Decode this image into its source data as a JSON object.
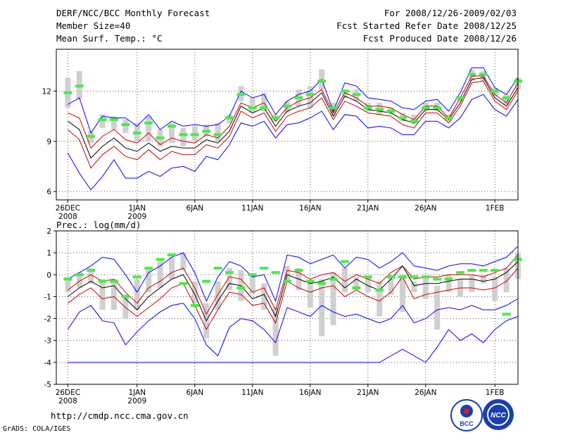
{
  "header": {
    "title": "DERF/NCC/BCC Monthly Forecast",
    "member_size": "Member Size=40",
    "variable": "Mean Surf. Temp.: °C",
    "period": "For 2008/12/26-2009/02/03",
    "fcst_started": "Fcst Started Refer Date 2008/12/25",
    "fcst_produced": "Fcst Produced Date 2008/12/26"
  },
  "precip_label": "Prec.: log(mm/d)",
  "footer": {
    "url": "http://cmdp.ncc.cma.gov.cn",
    "credit": "GrADS: COLA/IGES",
    "logo_bcc": "BCC",
    "logo_ncc": "NCC"
  },
  "colors": {
    "max_line": "#0000ff",
    "min_line": "#0000ff",
    "spread_line": "#cc0000",
    "mean_line": "#000000",
    "box": "#d0d0d0",
    "marker": "#44ee44"
  },
  "chart_data": [
    {
      "type": "line",
      "title": "Mean Surf. Temp.: °C",
      "x_labels": [
        {
          "day": 0,
          "line1": "26DEC",
          "line2": "2008"
        },
        {
          "day": 6,
          "line1": "1JAN",
          "line2": "2009"
        },
        {
          "day": 11,
          "line1": "6JAN",
          "line2": ""
        },
        {
          "day": 16,
          "line1": "11JAN",
          "line2": ""
        },
        {
          "day": 21,
          "line1": "16JAN",
          "line2": ""
        },
        {
          "day": 26,
          "line1": "21JAN",
          "line2": ""
        },
        {
          "day": 31,
          "line1": "26JAN",
          "line2": ""
        },
        {
          "day": 37,
          "line1": "1FEB",
          "line2": ""
        }
      ],
      "xlim": [
        -1,
        39
      ],
      "ylim": [
        5.5,
        14.5
      ],
      "yticks": [
        6,
        9,
        12
      ],
      "grid": true,
      "series": [
        {
          "name": "max",
          "color": "#0000ff",
          "values": [
            11.2,
            11.6,
            9.5,
            10.5,
            10.4,
            10.4,
            9.9,
            10.6,
            9.7,
            10.2,
            9.9,
            10.0,
            9.9,
            10.0,
            10.5,
            12.0,
            11.6,
            11.8,
            10.6,
            11.4,
            11.8,
            12.0,
            12.7,
            10.8,
            12.5,
            12.3,
            11.6,
            11.5,
            11.4,
            11.0,
            10.9,
            11.4,
            11.5,
            10.8,
            11.9,
            13.4,
            13.4,
            12.2,
            11.8,
            12.8
          ]
        },
        {
          "name": "upper",
          "color": "#cc0000",
          "values": [
            10.7,
            10.4,
            8.6,
            9.3,
            9.7,
            9.1,
            8.9,
            9.5,
            8.8,
            9.2,
            9.0,
            8.9,
            9.4,
            9.2,
            9.9,
            11.3,
            11.0,
            11.3,
            10.2,
            11.0,
            11.4,
            11.6,
            12.1,
            10.7,
            11.9,
            11.6,
            11.1,
            11.1,
            11.0,
            10.6,
            10.3,
            11.1,
            11.1,
            10.4,
            11.6,
            12.9,
            12.9,
            11.8,
            11.3,
            12.5
          ]
        },
        {
          "name": "mean",
          "color": "#000000",
          "values": [
            10.2,
            9.7,
            8.0,
            8.7,
            9.2,
            8.6,
            8.4,
            8.9,
            8.4,
            8.7,
            8.6,
            8.6,
            9.1,
            8.9,
            9.6,
            11.1,
            10.7,
            11.0,
            9.9,
            10.8,
            11.1,
            11.3,
            11.9,
            10.5,
            11.7,
            11.4,
            10.9,
            10.8,
            10.7,
            10.3,
            10.1,
            10.9,
            10.9,
            10.3,
            11.3,
            12.7,
            12.8,
            11.6,
            11.1,
            12.2
          ]
        },
        {
          "name": "lower",
          "color": "#cc0000",
          "values": [
            9.7,
            9.1,
            7.4,
            8.2,
            8.7,
            8.1,
            7.9,
            8.5,
            7.9,
            8.4,
            8.2,
            8.2,
            8.8,
            8.6,
            9.3,
            10.8,
            10.4,
            10.7,
            9.6,
            10.5,
            10.8,
            11.0,
            11.6,
            10.3,
            11.4,
            11.1,
            10.7,
            10.6,
            10.5,
            10.0,
            9.8,
            10.7,
            10.7,
            10.1,
            11.1,
            12.5,
            12.6,
            11.4,
            10.9,
            12.0
          ]
        },
        {
          "name": "min",
          "color": "#0000ff",
          "values": [
            8.3,
            7.1,
            6.1,
            6.9,
            7.9,
            6.8,
            6.8,
            7.2,
            6.9,
            7.4,
            7.5,
            7.2,
            8.1,
            7.9,
            8.8,
            10.1,
            9.9,
            10.2,
            9.2,
            10.0,
            10.1,
            10.4,
            10.8,
            9.7,
            10.6,
            10.5,
            9.8,
            9.9,
            9.8,
            9.4,
            9.4,
            10.2,
            10.2,
            9.8,
            10.4,
            11.5,
            11.8,
            10.9,
            10.5,
            11.5
          ]
        }
      ],
      "boxes": [
        [
          11.0,
          12.8
        ],
        [
          11.5,
          13.2
        ],
        [
          8.9,
          9.6
        ],
        [
          9.8,
          10.6
        ],
        [
          9.7,
          10.5
        ],
        [
          9.5,
          10.3
        ],
        [
          9.0,
          10.1
        ],
        [
          9.0,
          10.5
        ],
        [
          8.7,
          9.7
        ],
        [
          8.9,
          10.1
        ],
        [
          8.7,
          9.8
        ],
        [
          9.0,
          9.9
        ],
        [
          9.3,
          10.0
        ],
        [
          9.0,
          10.1
        ],
        [
          10.1,
          10.6
        ],
        [
          11.4,
          12.3
        ],
        [
          10.7,
          11.6
        ],
        [
          10.8,
          11.9
        ],
        [
          10.2,
          10.6
        ],
        [
          10.7,
          11.4
        ],
        [
          11.1,
          12.1
        ],
        [
          11.0,
          12.3
        ],
        [
          12.1,
          13.3
        ],
        [
          10.5,
          11.3
        ],
        [
          11.6,
          12.1
        ],
        [
          11.4,
          12.1
        ],
        [
          10.8,
          11.3
        ],
        [
          10.6,
          11.3
        ],
        [
          10.7,
          11.0
        ],
        [
          10.2,
          10.7
        ],
        [
          10.0,
          10.6
        ],
        [
          10.8,
          11.3
        ],
        [
          10.8,
          11.3
        ],
        [
          10.2,
          10.6
        ],
        [
          11.4,
          11.7
        ],
        [
          12.6,
          13.3
        ],
        [
          12.6,
          13.2
        ],
        [
          11.7,
          12.2
        ],
        [
          11.2,
          11.8
        ],
        [
          12.1,
          12.8
        ]
      ],
      "markers": [
        11.9,
        12.3,
        9.3,
        10.3,
        10.3,
        10.0,
        9.5,
        10.1,
        9.2,
        9.9,
        9.4,
        9.4,
        9.6,
        9.4,
        10.4,
        11.8,
        11.0,
        11.0,
        10.4,
        11.1,
        11.6,
        11.8,
        12.6,
        11.0,
        12.0,
        11.8,
        11.0,
        10.9,
        10.8,
        10.4,
        10.2,
        11.0,
        11.0,
        10.4,
        11.6,
        13.0,
        13.0,
        12.0,
        11.6,
        12.6
      ]
    },
    {
      "type": "line",
      "title": "Prec.: log(mm/d)",
      "x_labels": [
        {
          "day": 0,
          "line1": "26DEC",
          "line2": "2008"
        },
        {
          "day": 6,
          "line1": "1JAN",
          "line2": "2009"
        },
        {
          "day": 11,
          "line1": "6JAN",
          "line2": ""
        },
        {
          "day": 16,
          "line1": "11JAN",
          "line2": ""
        },
        {
          "day": 21,
          "line1": "16JAN",
          "line2": ""
        },
        {
          "day": 26,
          "line1": "21JAN",
          "line2": ""
        },
        {
          "day": 31,
          "line1": "26JAN",
          "line2": ""
        },
        {
          "day": 37,
          "line1": "1FEB",
          "line2": ""
        }
      ],
      "xlim": [
        -1,
        39
      ],
      "ylim": [
        -5,
        2
      ],
      "yticks": [
        -5,
        -4,
        -3,
        -2,
        -1,
        0,
        1,
        2
      ],
      "grid": true,
      "series": [
        {
          "name": "max",
          "color": "#0000ff",
          "values": [
            -0.2,
            0.1,
            0.4,
            0.8,
            0.7,
            0.0,
            -0.8,
            0.1,
            0.4,
            0.8,
            1.0,
            0.1,
            -1.2,
            -0.1,
            0.6,
            0.4,
            -0.1,
            0.0,
            -1.2,
            0.9,
            0.8,
            0.5,
            0.7,
            0.9,
            0.3,
            0.8,
            0.7,
            0.3,
            0.6,
            1.0,
            0.4,
            0.3,
            0.2,
            0.4,
            0.5,
            0.5,
            0.4,
            0.6,
            0.8,
            1.3
          ]
        },
        {
          "name": "upper",
          "color": "#cc0000",
          "values": [
            -0.7,
            -0.3,
            0.0,
            -0.3,
            -0.2,
            -0.8,
            -1.3,
            -0.6,
            -0.3,
            0.1,
            0.3,
            -0.6,
            -1.8,
            -0.9,
            -0.1,
            -0.2,
            -0.8,
            -0.6,
            -1.6,
            0.2,
            0.1,
            -0.2,
            0.0,
            0.1,
            -0.3,
            0.0,
            -0.2,
            -0.4,
            0.1,
            0.4,
            -0.2,
            -0.1,
            -0.1,
            0.0,
            0.0,
            0.0,
            -0.1,
            0.1,
            0.3,
            0.9
          ]
        },
        {
          "name": "mean",
          "color": "#000000",
          "values": [
            -1.0,
            -0.6,
            -0.3,
            -0.6,
            -0.5,
            -1.1,
            -1.6,
            -1.0,
            -0.6,
            -0.2,
            0.0,
            -0.9,
            -2.1,
            -1.2,
            -0.4,
            -0.5,
            -1.1,
            -0.9,
            -1.9,
            0.0,
            -0.2,
            -0.4,
            -0.3,
            -0.1,
            -0.6,
            -0.2,
            -0.5,
            -0.7,
            -0.2,
            0.4,
            -0.5,
            -0.4,
            -0.4,
            -0.3,
            -0.2,
            -0.2,
            -0.3,
            -0.2,
            0.1,
            0.6
          ]
        },
        {
          "name": "lower",
          "color": "#cc0000",
          "values": [
            -1.3,
            -0.9,
            -0.6,
            -1.1,
            -1.0,
            -1.5,
            -1.9,
            -1.5,
            -1.1,
            -0.6,
            -0.4,
            -1.4,
            -2.5,
            -1.6,
            -0.8,
            -0.9,
            -1.4,
            -1.3,
            -2.2,
            -0.3,
            -0.6,
            -0.8,
            -0.6,
            -0.5,
            -1.0,
            -0.7,
            -1.0,
            -1.2,
            -0.8,
            -0.1,
            -1.1,
            -0.9,
            -0.8,
            -0.7,
            -0.6,
            -0.6,
            -0.7,
            -0.6,
            -0.3,
            0.3
          ]
        },
        {
          "name": "min",
          "color": "#0000ff",
          "values": [
            -2.5,
            -1.7,
            -1.4,
            -2.1,
            -2.2,
            -3.2,
            -2.6,
            -2.1,
            -1.7,
            -1.4,
            -1.3,
            -2.0,
            -3.2,
            -3.7,
            -2.4,
            -2.0,
            -2.1,
            -2.5,
            -3.1,
            -1.5,
            -1.7,
            -1.9,
            -1.4,
            -1.7,
            -1.9,
            -1.8,
            -2.0,
            -2.2,
            -2.0,
            -1.4,
            -2.2,
            -2.0,
            -1.6,
            -1.5,
            -1.6,
            -1.4,
            -1.6,
            -1.6,
            -1.4,
            -1.1
          ]
        }
      ],
      "lower_bound": {
        "name": "min_floor",
        "color": "#0000ff",
        "values": [
          -4.0,
          -4.0,
          -4.0,
          -4.0,
          -4.0,
          -4.0,
          -4.0,
          -4.0,
          -4.0,
          -4.0,
          -4.0,
          -4.0,
          -4.0,
          -4.0,
          -4.0,
          -4.0,
          -4.0,
          -4.0,
          -4.0,
          -4.0,
          -4.0,
          -4.0,
          -4.0,
          -4.0,
          -4.0,
          -4.0,
          -4.0,
          -4.0,
          -3.7,
          -3.4,
          -3.7,
          -4.0,
          -3.3,
          -2.5,
          -3.0,
          -2.7,
          -3.1,
          -2.5,
          -2.1,
          -1.9
        ]
      },
      "boxes": [
        [
          -0.8,
          -0.1
        ],
        [
          -0.6,
          0.1
        ],
        [
          -0.4,
          0.3
        ],
        [
          -1.6,
          -0.2
        ],
        [
          -1.6,
          -0.2
        ],
        [
          -2.0,
          -0.9
        ],
        [
          -1.6,
          -0.2
        ],
        [
          -0.8,
          0.3
        ],
        [
          -0.6,
          0.7
        ],
        [
          -0.2,
          0.8
        ],
        [
          0.2,
          1.0
        ],
        [
          -1.3,
          -0.3
        ],
        [
          -2.9,
          -1.3
        ],
        [
          -1.6,
          -0.3
        ],
        [
          -0.7,
          0.3
        ],
        [
          -1.2,
          0.2
        ],
        [
          -0.9,
          0.0
        ],
        [
          -1.6,
          -0.4
        ],
        [
          -3.7,
          -1.5
        ],
        [
          -0.3,
          0.4
        ],
        [
          -0.7,
          0.3
        ],
        [
          -1.5,
          -0.2
        ],
        [
          -2.8,
          -0.2
        ],
        [
          -2.3,
          0.1
        ],
        [
          -0.8,
          0.3
        ],
        [
          -0.7,
          -0.1
        ],
        [
          -0.8,
          -0.1
        ],
        [
          -1.9,
          -0.3
        ],
        [
          -0.9,
          0.0
        ],
        [
          -1.7,
          0.0
        ],
        [
          -0.8,
          -0.3
        ],
        [
          -1.1,
          -0.1
        ],
        [
          -2.5,
          -0.5
        ],
        [
          -0.8,
          0.0
        ],
        [
          -1.0,
          -0.2
        ],
        [
          -0.8,
          0.0
        ],
        [
          -0.4,
          0.0
        ],
        [
          -1.2,
          -0.1
        ],
        [
          -0.8,
          0.3
        ],
        [
          -0.2,
          1.0
        ]
      ],
      "markers": [
        -0.2,
        0.0,
        0.2,
        -0.3,
        -0.3,
        -1.0,
        -0.1,
        0.3,
        0.7,
        0.9,
        -0.4,
        -1.4,
        -0.3,
        0.3,
        0.1,
        -0.6,
        0.0,
        0.3,
        0.1,
        -0.3,
        0.2,
        -0.3,
        -0.4,
        -0.2,
        0.6,
        -0.6,
        -0.1,
        -0.7,
        -0.1,
        -0.1,
        -0.1,
        -0.1,
        -0.2,
        -0.2,
        0.1,
        0.2,
        0.2,
        0.2,
        -1.8,
        0.7
      ]
    }
  ]
}
